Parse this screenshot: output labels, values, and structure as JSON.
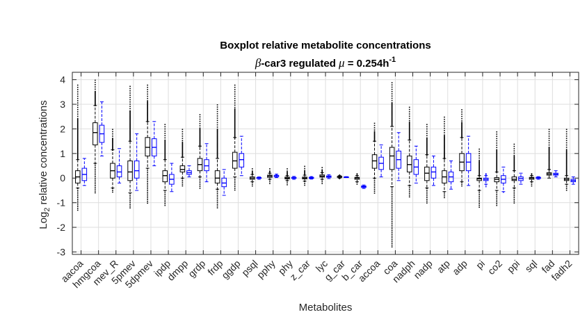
{
  "chart_data": {
    "type": "box",
    "title": "Boxplot relative metabolite concentrations",
    "subtitle": {
      "symbol": "β",
      "prefix": "-car3 regulated ",
      "mu": "μ",
      "middle": " = 0.254h",
      "superscript": "-1"
    },
    "xlabel": "Metabolites",
    "ylabel": {
      "prefix": "Log",
      "subscript": "2",
      "suffix": " relative concentrations"
    },
    "ylim": [
      -3.1,
      4.3
    ],
    "yticks": [
      -3,
      -2,
      -1,
      0,
      1,
      2,
      3,
      4
    ],
    "grid": true,
    "group_colors": [
      "#000000",
      "#0000ff"
    ],
    "categories": [
      "aacoa",
      "hmgcoa",
      "mev_R",
      "5pmev",
      "5dpmev",
      "ipdp",
      "dmpp",
      "grdp",
      "frdp",
      "ggdp",
      "psql",
      "pphy",
      "phy",
      "z_car",
      "lyc",
      "g_car",
      "b_car",
      "accoa",
      "coa",
      "nadph",
      "nadp",
      "atp",
      "adp",
      "pi",
      "co2",
      "ppi",
      "sql",
      "fad",
      "fadh2"
    ],
    "series": [
      {
        "color": "#000000",
        "stats": [
          [
            -0.4,
            -0.2,
            0.05,
            0.3,
            0.75
          ],
          [
            0.6,
            1.35,
            1.85,
            2.25,
            2.95
          ],
          [
            -0.4,
            0.0,
            0.3,
            0.6,
            1.15
          ],
          [
            -0.6,
            -0.1,
            0.25,
            0.7,
            1.5
          ],
          [
            0.4,
            0.9,
            1.25,
            1.65,
            2.3
          ],
          [
            -0.5,
            -0.15,
            0.1,
            0.3,
            0.75
          ],
          [
            0.0,
            0.25,
            0.35,
            0.5,
            0.85
          ],
          [
            0.05,
            0.3,
            0.55,
            0.8,
            1.3
          ],
          [
            -0.45,
            -0.2,
            0.0,
            0.3,
            0.8
          ],
          [
            0.05,
            0.4,
            0.7,
            1.05,
            1.65
          ],
          [
            -0.15,
            -0.05,
            0.0,
            0.05,
            0.15
          ],
          [
            -0.05,
            0.03,
            0.08,
            0.12,
            0.2
          ],
          [
            -0.1,
            -0.03,
            0.0,
            0.04,
            0.1
          ],
          [
            -0.12,
            -0.03,
            0.0,
            0.04,
            0.12
          ],
          [
            -0.05,
            0.04,
            0.08,
            0.13,
            0.22
          ],
          [
            0.0,
            0.03,
            0.05,
            0.07,
            0.1
          ],
          [
            -0.15,
            -0.05,
            0.0,
            0.03,
            0.1
          ],
          [
            0.0,
            0.4,
            0.7,
            0.95,
            1.5
          ],
          [
            -0.35,
            0.35,
            0.9,
            1.25,
            2.1
          ],
          [
            -0.3,
            0.25,
            0.55,
            0.9,
            1.55
          ],
          [
            -0.4,
            -0.1,
            0.2,
            0.45,
            0.95
          ],
          [
            -0.55,
            -0.2,
            0.05,
            0.3,
            0.8
          ],
          [
            -0.15,
            0.3,
            0.65,
            1.0,
            1.65
          ],
          [
            -0.5,
            -0.1,
            -0.03,
            0.0,
            0.1
          ],
          [
            -0.5,
            -0.15,
            -0.05,
            0.02,
            0.25
          ],
          [
            -0.4,
            -0.1,
            -0.05,
            0.05,
            0.3
          ],
          [
            -0.15,
            -0.05,
            0.0,
            0.03,
            0.1
          ],
          [
            0.0,
            0.12,
            0.17,
            0.22,
            0.35
          ],
          [
            -0.25,
            -0.1,
            -0.05,
            0.0,
            0.1
          ]
        ],
        "outliers": [
          [
            -1.3,
            1.0,
            3.8
          ],
          [
            -0.6,
            3.1,
            4.0
          ],
          [
            -0.6,
            1.4,
            2.0
          ],
          [
            -1.25,
            1.7,
            3.75
          ],
          [
            -1.05,
            2.5,
            3.8
          ],
          [
            -1.1,
            1.0,
            2.2
          ],
          [
            -0.3,
            1.0,
            2.0
          ],
          [
            -0.4,
            1.5,
            2.6
          ],
          [
            -1.2,
            1.05,
            3.0
          ],
          [
            -0.5,
            1.9,
            3.8
          ],
          [
            -0.3,
            0.2,
            0.4
          ],
          [
            -0.2,
            0.25,
            0.4
          ],
          [
            -0.3,
            0.15,
            0.4
          ],
          [
            -0.3,
            0.2,
            0.5
          ],
          [
            -0.2,
            0.3,
            0.45
          ],
          [
            -0.05,
            0.12,
            0.15
          ],
          [
            -0.25,
            0.12,
            0.2
          ],
          [
            -0.6,
            1.7,
            2.25
          ],
          [
            -2.8,
            2.3,
            3.9
          ],
          [
            -0.8,
            1.8,
            2.9
          ],
          [
            -1.0,
            1.1,
            2.2
          ],
          [
            -0.8,
            1.0,
            2.5
          ],
          [
            -0.3,
            2.0,
            2.8
          ],
          [
            -1.2,
            0.4,
            1.2
          ],
          [
            -1.1,
            0.5,
            1.9
          ],
          [
            -1.0,
            0.5,
            1.4
          ],
          [
            -0.3,
            0.15,
            0.2
          ],
          [
            0.0,
            0.4,
            2.0
          ],
          [
            -0.5,
            0.3,
            2.0
          ]
        ]
      },
      {
        "color": "#0000ff",
        "stats": [
          [
            -0.3,
            -0.1,
            0.15,
            0.4,
            0.8
          ],
          [
            0.9,
            1.45,
            1.8,
            2.15,
            3.1
          ],
          [
            -0.2,
            0.05,
            0.25,
            0.5,
            1.2
          ],
          [
            -0.5,
            0.0,
            0.3,
            0.7,
            1.8
          ],
          [
            0.5,
            0.9,
            1.25,
            1.6,
            2.3
          ],
          [
            -0.55,
            -0.25,
            -0.05,
            0.15,
            0.6
          ],
          [
            0.05,
            0.15,
            0.22,
            0.3,
            0.5
          ],
          [
            -0.15,
            0.3,
            0.5,
            0.75,
            1.4
          ],
          [
            -0.7,
            -0.35,
            -0.2,
            0.0,
            0.35
          ],
          [
            0.1,
            0.45,
            0.75,
            1.0,
            1.7
          ],
          [
            -0.05,
            0.0,
            0.01,
            0.02,
            0.05
          ],
          [
            0.02,
            0.06,
            0.09,
            0.11,
            0.16
          ],
          [
            -0.05,
            -0.01,
            0.01,
            0.03,
            0.07
          ],
          [
            -0.04,
            -0.01,
            0.01,
            0.03,
            0.06
          ],
          [
            -0.02,
            0.03,
            0.06,
            0.09,
            0.14
          ],
          [
            0.02,
            0.03,
            0.04,
            0.05,
            0.06
          ],
          [
            -0.42,
            -0.38,
            -0.35,
            -0.32,
            -0.28
          ],
          [
            0.05,
            0.35,
            0.6,
            0.85,
            1.35
          ],
          [
            -0.1,
            0.4,
            0.75,
            1.1,
            1.85
          ],
          [
            -0.2,
            0.15,
            0.45,
            0.75,
            1.3
          ],
          [
            -0.3,
            0.0,
            0.25,
            0.45,
            0.9
          ],
          [
            -0.45,
            -0.15,
            0.05,
            0.25,
            0.7
          ],
          [
            -0.3,
            0.3,
            0.65,
            1.0,
            1.7
          ],
          [
            -0.25,
            -0.1,
            -0.05,
            0.0,
            0.1
          ],
          [
            -0.55,
            -0.2,
            -0.05,
            0.1,
            0.45
          ],
          [
            -0.25,
            -0.1,
            -0.02,
            0.05,
            0.2
          ],
          [
            -0.05,
            -0.01,
            0.01,
            0.03,
            0.06
          ],
          [
            0.05,
            0.12,
            0.16,
            0.2,
            0.3
          ],
          [
            -0.25,
            -0.15,
            -0.1,
            -0.05,
            0.05
          ]
        ],
        "outliers": [
          [],
          [],
          [],
          [],
          [],
          [],
          [],
          [],
          [],
          [],
          [
            0.0
          ],
          [
            0.18
          ],
          [],
          [
            0.08
          ],
          [],
          [],
          [
            -0.3
          ],
          [],
          [],
          [],
          [],
          [],
          [],
          [
            -0.35,
            0.2
          ],
          [
            -0.6
          ],
          [],
          [],
          [],
          []
        ]
      }
    ]
  }
}
